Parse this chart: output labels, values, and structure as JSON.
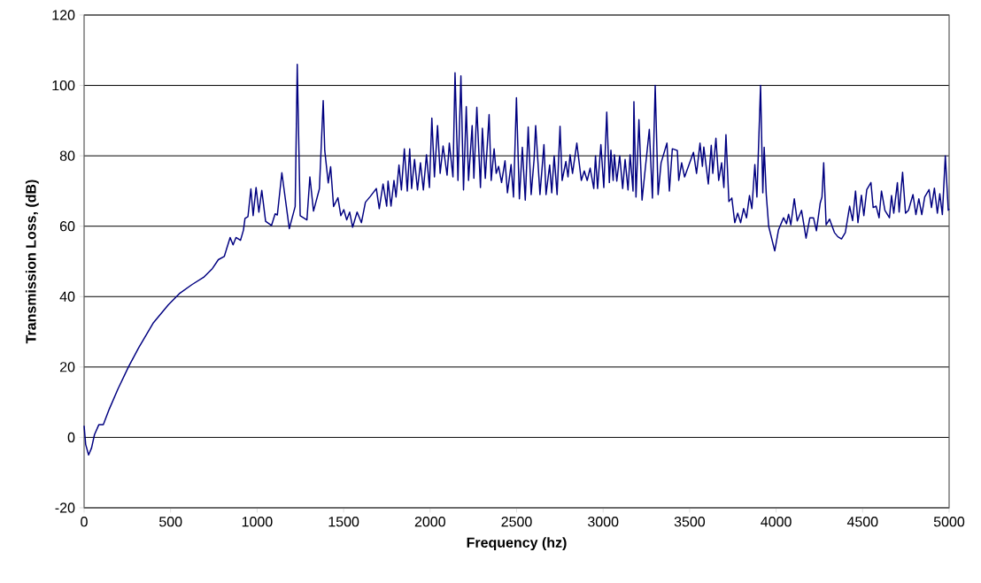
{
  "chart_data": {
    "type": "line",
    "xlabel": "Frequency (hz)",
    "ylabel": "Transmission Loss, (dB)",
    "xlim": [
      0,
      5000
    ],
    "ylim": [
      -20,
      120
    ],
    "xticks": [
      0,
      500,
      1000,
      1500,
      2000,
      2500,
      3000,
      3500,
      4000,
      4500,
      5000
    ],
    "yticks": [
      -20,
      0,
      20,
      40,
      60,
      80,
      100,
      120
    ],
    "grid": "y",
    "marker": "none",
    "line_style": "solid",
    "series": [
      {
        "color": "#000080",
        "x": [
          0,
          9,
          26,
          43,
          60,
          85,
          111,
          145,
          196,
          256,
          316,
          401,
          486,
          554,
          623,
          691,
          742,
          776,
          810,
          844,
          861,
          878,
          904,
          921,
          930,
          947,
          964,
          977,
          994,
          1010,
          1027,
          1049,
          1083,
          1104,
          1117,
          1143,
          1186,
          1220,
          1232,
          1249,
          1288,
          1305,
          1326,
          1360,
          1382,
          1391,
          1411,
          1425,
          1442,
          1467,
          1484,
          1501,
          1518,
          1535,
          1552,
          1578,
          1603,
          1626,
          1655,
          1689,
          1706,
          1728,
          1749,
          1757,
          1774,
          1791,
          1803,
          1820,
          1834,
          1851,
          1868,
          1882,
          1893,
          1910,
          1927,
          1944,
          1961,
          1979,
          1996,
          2010,
          2025,
          2043,
          2058,
          2075,
          2098,
          2111,
          2132,
          2144,
          2161,
          2178,
          2193,
          2209,
          2222,
          2243,
          2253,
          2270,
          2291,
          2302,
          2319,
          2341,
          2353,
          2370,
          2382,
          2396,
          2413,
          2433,
          2447,
          2468,
          2482,
          2499,
          2516,
          2533,
          2550,
          2567,
          2584,
          2601,
          2610,
          2635,
          2658,
          2670,
          2691,
          2703,
          2717,
          2734,
          2751,
          2763,
          2785,
          2797,
          2809,
          2823,
          2848,
          2874,
          2891,
          2908,
          2925,
          2946,
          2956,
          2968,
          2987,
          3004,
          3021,
          3036,
          3045,
          3058,
          3065,
          3079,
          3096,
          3113,
          3127,
          3144,
          3156,
          3173,
          3178,
          3190,
          3207,
          3225,
          3267,
          3285,
          3301,
          3318,
          3335,
          3369,
          3383,
          3400,
          3429,
          3437,
          3454,
          3471,
          3522,
          3540,
          3560,
          3574,
          3582,
          3608,
          3625,
          3634,
          3652,
          3668,
          3685,
          3698,
          3710,
          3727,
          3744,
          3761,
          3778,
          3795,
          3812,
          3829,
          3846,
          3860,
          3877,
          3889,
          3910,
          3923,
          3931,
          3943,
          3957,
          3992,
          4014,
          4043,
          4060,
          4072,
          4085,
          4105,
          4122,
          4147,
          4173,
          4195,
          4216,
          4233,
          4255,
          4265,
          4275,
          4289,
          4309,
          4337,
          4357,
          4378,
          4400,
          4425,
          4442,
          4459,
          4473,
          4493,
          4507,
          4524,
          4548,
          4561,
          4578,
          4595,
          4609,
          4629,
          4655,
          4667,
          4680,
          4701,
          4711,
          4731,
          4748,
          4765,
          4791,
          4808,
          4825,
          4842,
          4859,
          4884,
          4898,
          4915,
          4932,
          4946,
          4961,
          4978,
          4995,
          5000
        ],
        "values": [
          3.3,
          -2,
          -5,
          -3,
          0.8,
          3.6,
          3.6,
          8,
          13.8,
          20,
          25.5,
          32.6,
          37.6,
          41,
          43.4,
          45.5,
          48,
          50.5,
          51.4,
          56.8,
          54.7,
          56.8,
          56,
          58.9,
          62.2,
          62.7,
          70.6,
          63,
          71,
          64,
          70.2,
          61.4,
          60.2,
          63.5,
          63.2,
          75.2,
          59.3,
          65.6,
          106,
          63,
          61.8,
          74,
          64.3,
          70.6,
          95.7,
          81.5,
          72.3,
          76.9,
          65.6,
          68.1,
          63,
          64.7,
          61.8,
          64,
          59.7,
          64,
          61,
          66.8,
          68.5,
          70.7,
          65,
          72,
          65.7,
          72.8,
          65.7,
          73,
          68.3,
          77.4,
          70.3,
          82,
          70,
          82,
          70.7,
          79,
          70.3,
          78,
          70.3,
          80.3,
          71,
          90.7,
          74,
          88.6,
          75,
          82.8,
          74.5,
          83.6,
          74,
          103.6,
          73,
          102.7,
          70.3,
          94,
          73,
          88.6,
          73.6,
          93.8,
          71,
          87.8,
          73.6,
          91.7,
          73,
          82,
          75,
          77,
          72.4,
          78.6,
          69.5,
          77.5,
          68.3,
          96.5,
          67.8,
          82.4,
          67.4,
          88.2,
          69,
          79,
          88.6,
          69,
          83.2,
          69,
          77.4,
          69.5,
          80,
          69,
          88.4,
          73,
          78.4,
          74,
          80.3,
          75,
          83.6,
          73,
          75.7,
          73,
          76.5,
          70.7,
          80,
          70.7,
          83.2,
          71,
          92.4,
          72.4,
          81.6,
          73,
          80.3,
          72.8,
          80,
          70.7,
          79,
          70.3,
          80.3,
          70,
          95.4,
          68.3,
          90.3,
          67.4,
          87.5,
          68,
          100,
          69,
          78,
          83.6,
          70,
          82,
          81.5,
          73,
          78,
          74,
          81,
          75,
          83.6,
          77,
          82.5,
          72,
          83,
          75,
          85,
          73,
          78,
          71,
          86,
          67,
          68,
          61,
          63.7,
          61,
          65,
          62.4,
          68.7,
          65,
          77.5,
          68.3,
          100,
          69.5,
          82.4,
          69,
          60,
          53,
          59,
          62.4,
          60.7,
          63.4,
          60.4,
          67.8,
          61.5,
          64.5,
          56.6,
          62.4,
          62.4,
          58.7,
          66.6,
          68.3,
          78,
          60.4,
          62,
          58.2,
          57,
          56.4,
          58.2,
          65.7,
          61.6,
          70,
          61,
          68.8,
          63,
          70.4,
          72.4,
          65.3,
          65.7,
          62.4,
          70,
          64.5,
          62.4,
          68.7,
          63.7,
          72.4,
          64,
          75.3,
          63.7,
          64.5,
          69,
          63.3,
          67.8,
          63.3,
          68.3,
          70.4,
          65.3,
          70.8,
          63.7,
          69.2,
          63.3,
          80,
          64.5,
          65
        ]
      }
    ]
  }
}
